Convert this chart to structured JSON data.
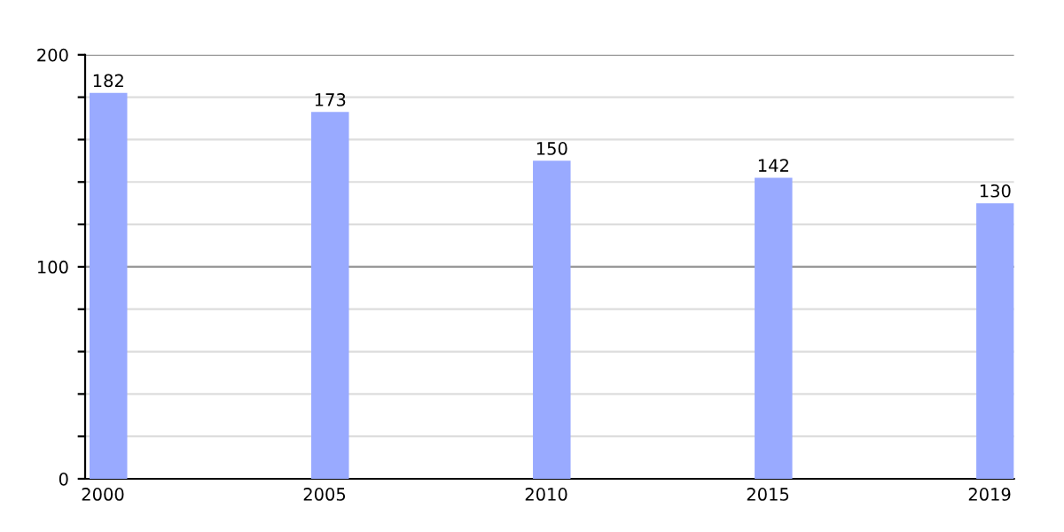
{
  "chart_data": {
    "type": "bar",
    "categories": [
      "2000",
      "2005",
      "2010",
      "2015",
      "2019"
    ],
    "values": [
      182,
      173,
      150,
      142,
      130
    ],
    "color": "#99aaff",
    "ylim": [
      0,
      200
    ],
    "yticks": [
      0,
      {
        "value": 20,
        "label": null
      },
      {
        "value": 40,
        "label": null
      },
      {
        "value": 60,
        "label": null
      },
      {
        "value": 80,
        "label": null
      },
      100,
      {
        "value": 120,
        "label": null
      },
      {
        "value": 140,
        "label": null
      },
      {
        "value": 160,
        "label": null
      },
      {
        "value": 180,
        "label": null
      },
      200
    ],
    "grid": "y",
    "ref_lines": [
      {
        "axis": "y",
        "value": 100,
        "color": "#999999"
      }
    ],
    "data_labels": true
  }
}
